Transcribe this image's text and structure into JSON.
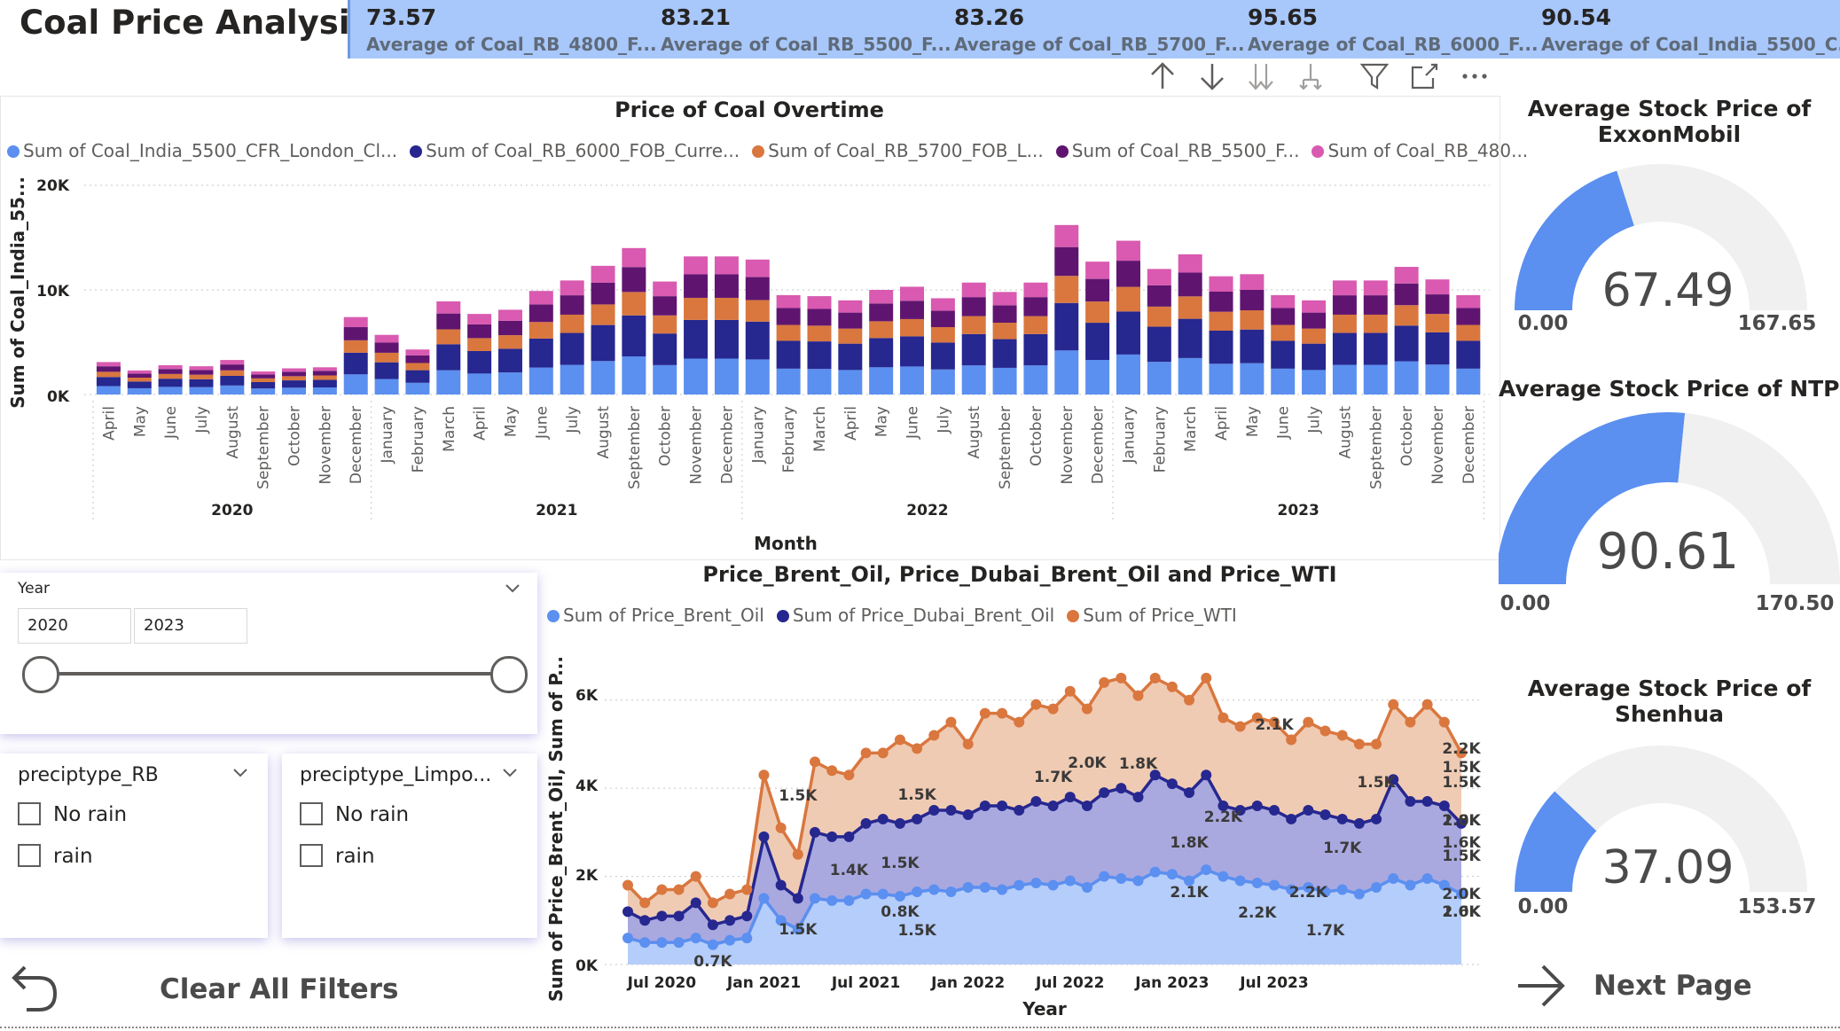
{
  "page": {
    "title": "Coal Price Analysis"
  },
  "kpis": [
    {
      "value": "73.57",
      "label": "Average of Coal_RB_4800_F..."
    },
    {
      "value": "83.21",
      "label": "Average of Coal_RB_5500_F..."
    },
    {
      "value": "83.26",
      "label": "Average of Coal_RB_5700_F..."
    },
    {
      "value": "95.65",
      "label": "Average of Coal_RB_6000_F..."
    },
    {
      "value": "90.54",
      "label": "Average of Coal_India_5500_C..."
    }
  ],
  "toolbar": {
    "icons": [
      "arrow-up-icon",
      "arrow-down-icon",
      "double-arrow-down-icon",
      "expand-hierarchy-icon",
      "filter-icon",
      "focus-mode-icon",
      "more-options-icon"
    ]
  },
  "coal_chart": {
    "title": "Price of Coal Overtime",
    "legend": [
      {
        "label": "Sum of Coal_India_5500_CFR_London_Cl...",
        "color": "#5b8ff0"
      },
      {
        "label": "Sum of Coal_RB_6000_FOB_Curre...",
        "color": "#26278f"
      },
      {
        "label": "Sum of Coal_RB_5700_FOB_L...",
        "color": "#d9773f"
      },
      {
        "label": "Sum of Coal_RB_5500_F...",
        "color": "#5f1570"
      },
      {
        "label": "Sum of Coal_RB_480...",
        "color": "#d95ab0"
      }
    ],
    "ylabel": "Sum of Coal_India_55...",
    "xlabel": "Month",
    "yticks": [
      "20K",
      "10K",
      "0K"
    ],
    "years": [
      "2020",
      "2021",
      "2022",
      "2023"
    ]
  },
  "oil_chart": {
    "title": "Price_Brent_Oil, Price_Dubai_Brent_Oil and Price_WTI",
    "legend": [
      {
        "label": "Sum of Price_Brent_Oil",
        "color": "#5b8ff0"
      },
      {
        "label": "Sum of Price_Dubai_Brent_Oil",
        "color": "#26278f"
      },
      {
        "label": "Sum of Price_WTI",
        "color": "#d9773f"
      }
    ],
    "ylabel": "Sum of Price_Brent_Oil, Sum of P...",
    "xlabel": "Year",
    "yticks": [
      "6K",
      "4K",
      "2K",
      "0K"
    ],
    "xticks": [
      "Jul 2020",
      "Jan 2021",
      "Jul 2021",
      "Jan 2022",
      "Jul 2022",
      "Jan 2023",
      "Jul 2023"
    ],
    "data_labels": [
      "0.7K",
      "1.5K",
      "1.5K",
      "1.4K",
      "1.5K",
      "0.8K",
      "1.5K",
      "1.5K",
      "2.0K",
      "1.7K",
      "1.8K",
      "2.1K",
      "1.8K",
      "2.1K",
      "2.2K",
      "2.2K",
      "2.2K",
      "1.7K",
      "1.5K",
      "1.7K",
      "1.5K",
      "2.0K",
      "2.2K",
      "1.5K",
      "1.5K",
      "2.0K",
      "1.8K",
      "1.6K",
      "2.0K",
      "1.6K"
    ]
  },
  "year_slicer": {
    "label": "Year",
    "from": "2020",
    "to": "2023"
  },
  "slicers": [
    {
      "label": "preciptype_RB",
      "options": [
        "No rain",
        "rain"
      ]
    },
    {
      "label": "preciptype_Limpo...",
      "options": [
        "No rain",
        "rain"
      ]
    }
  ],
  "gauges": [
    {
      "title_line1": "Average Stock Price of",
      "title_line2": "ExxonMobil",
      "value": "67.49",
      "min": "0.00",
      "max": "167.65"
    },
    {
      "title_line1": "Average Stock Price of NTPC",
      "title_line2": "",
      "value": "90.61",
      "min": "0.00",
      "max": "170.50"
    },
    {
      "title_line1": "Average Stock Price of",
      "title_line2": "Shenhua",
      "value": "37.09",
      "min": "0.00",
      "max": "153.57"
    }
  ],
  "nav": {
    "clear_label": "Clear All Filters",
    "next_label": "Next Page"
  },
  "colors": {
    "kpi_bg": "#a8c7fa",
    "accent_blue": "#5b8ff0",
    "navy": "#26278f",
    "orange": "#d9773f",
    "purple": "#5f1570",
    "pink": "#d95ab0"
  },
  "chart_data": [
    {
      "type": "bar",
      "stacked": true,
      "title": "Price of Coal Overtime",
      "xlabel": "Month",
      "ylabel": "Sum of Coal_India_55...",
      "ylim": [
        0,
        20000
      ],
      "categories": [
        "April",
        "May",
        "June",
        "July",
        "August",
        "September",
        "October",
        "November",
        "December",
        "January",
        "February",
        "March",
        "April",
        "May",
        "June",
        "July",
        "August",
        "September",
        "October",
        "November",
        "December",
        "January",
        "February",
        "March",
        "April",
        "May",
        "June",
        "July",
        "August",
        "September",
        "October",
        "November",
        "December",
        "January",
        "February",
        "March",
        "April",
        "May",
        "June",
        "July",
        "August",
        "September",
        "October",
        "November",
        "December"
      ],
      "category_years": [
        "2020",
        "2020",
        "2020",
        "2020",
        "2020",
        "2020",
        "2020",
        "2020",
        "2020",
        "2021",
        "2021",
        "2021",
        "2021",
        "2021",
        "2021",
        "2021",
        "2021",
        "2021",
        "2021",
        "2021",
        "2021",
        "2022",
        "2022",
        "2022",
        "2022",
        "2022",
        "2022",
        "2022",
        "2022",
        "2022",
        "2022",
        "2022",
        "2022",
        "2023",
        "2023",
        "2023",
        "2023",
        "2023",
        "2023",
        "2023",
        "2023",
        "2023",
        "2023",
        "2023",
        "2023"
      ],
      "totals": [
        3100,
        2300,
        2800,
        2700,
        3300,
        2200,
        2500,
        2600,
        7400,
        5700,
        4300,
        8900,
        7700,
        8100,
        9900,
        10900,
        12300,
        14000,
        10800,
        13200,
        13200,
        12900,
        9500,
        9400,
        9000,
        10000,
        10300,
        9200,
        10700,
        9800,
        10700,
        16200,
        12700,
        14700,
        12000,
        13400,
        11300,
        11500,
        9500,
        9000,
        10900,
        10900,
        12200,
        11000,
        9500
      ],
      "shares": [
        0.26,
        0.28,
        0.16,
        0.17,
        0.13
      ],
      "series": [
        {
          "name": "Sum of Coal_India_5500_CFR_London_Cl..."
        },
        {
          "name": "Sum of Coal_RB_6000_FOB_Curre..."
        },
        {
          "name": "Sum of Coal_RB_5700_FOB_L..."
        },
        {
          "name": "Sum of Coal_RB_5500_F..."
        },
        {
          "name": "Sum of Coal_RB_480..."
        }
      ]
    },
    {
      "type": "area",
      "title": "Price_Brent_Oil, Price_Dubai_Brent_Oil and Price_WTI",
      "xlabel": "Year",
      "ylim": [
        0,
        7000
      ],
      "x_start": "2020-05",
      "x_end": "2023-12",
      "series": [
        {
          "name": "Sum of Price_Brent_Oil",
          "values": [
            600,
            500,
            500,
            500,
            600,
            450,
            550,
            600,
            1500,
            1000,
            800,
            1500,
            1450,
            1450,
            1600,
            1600,
            1550,
            1650,
            1700,
            1650,
            1750,
            1750,
            1700,
            1800,
            1850,
            1800,
            1900,
            1750,
            2000,
            1950,
            1900,
            2100,
            2050,
            1900,
            2150,
            2000,
            1900,
            1850,
            1800,
            1700,
            1750,
            1650,
            1700,
            1600,
            1750,
            1950,
            1800,
            1950,
            1800,
            1600
          ]
        },
        {
          "name": "Sum of Price_Dubai_Brent_Oil",
          "values": [
            1200,
            1000,
            1100,
            1100,
            1400,
            900,
            1000,
            1100,
            2900,
            1800,
            1500,
            3000,
            2900,
            2900,
            3200,
            3300,
            3200,
            3300,
            3500,
            3500,
            3400,
            3600,
            3600,
            3500,
            3700,
            3600,
            3800,
            3600,
            3900,
            4000,
            3800,
            4300,
            4100,
            3900,
            4300,
            3600,
            3500,
            3600,
            3500,
            3300,
            3500,
            3400,
            3300,
            3200,
            3300,
            4200,
            3700,
            3700,
            3600,
            3200
          ]
        },
        {
          "name": "Sum of Price_WTI",
          "values": [
            1800,
            1400,
            1700,
            1700,
            2000,
            1400,
            1600,
            1700,
            4300,
            3100,
            2500,
            4600,
            4400,
            4300,
            4800,
            4800,
            5100,
            4900,
            5200,
            5500,
            5000,
            5700,
            5700,
            5500,
            5900,
            5800,
            6200,
            5800,
            6400,
            6500,
            6100,
            6500,
            6300,
            6000,
            6500,
            5600,
            5400,
            5600,
            5500,
            5100,
            5500,
            5300,
            5200,
            5000,
            5000,
            5900,
            5500,
            5900,
            5500,
            4800
          ]
        }
      ]
    }
  ]
}
